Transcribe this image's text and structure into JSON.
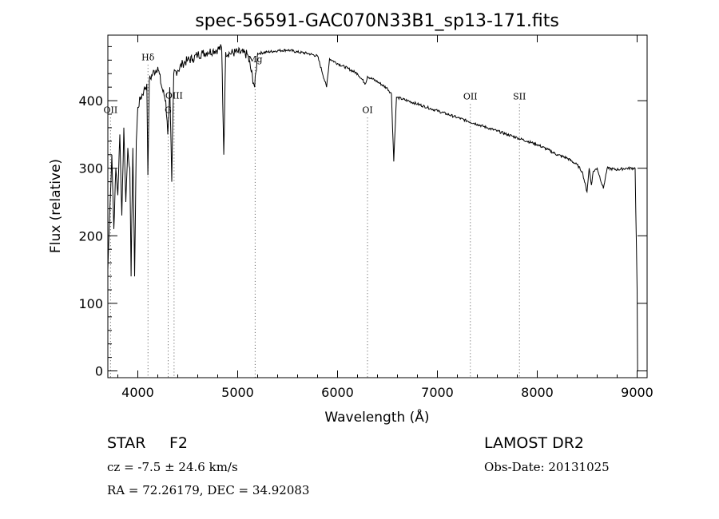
{
  "chart_data": {
    "type": "line",
    "title": "spec-56591-GAC070N33B1_sp13-171.fits",
    "xlabel": "Wavelength (Å)",
    "ylabel": "Flux (relative)",
    "xlim": [
      3700,
      9100
    ],
    "ylim": [
      -10,
      497
    ],
    "x_ticks": [
      4000,
      5000,
      6000,
      7000,
      8000,
      9000
    ],
    "y_ticks": [
      0,
      100,
      200,
      300,
      400
    ],
    "series": [
      {
        "name": "spectrum",
        "x": [
          3700,
          3720,
          3740,
          3760,
          3780,
          3800,
          3820,
          3840,
          3860,
          3880,
          3900,
          3920,
          3933,
          3950,
          3968,
          3985,
          4000,
          4030,
          4060,
          4090,
          4101,
          4115,
          4150,
          4200,
          4240,
          4280,
          4300,
          4320,
          4340,
          4360,
          4400,
          4450,
          4500,
          4550,
          4600,
          4650,
          4700,
          4750,
          4800,
          4840,
          4861,
          4880,
          4920,
          5000,
          5100,
          5170,
          5200,
          5300,
          5400,
          5500,
          5600,
          5700,
          5800,
          5890,
          5920,
          6000,
          6100,
          6200,
          6280,
          6300,
          6400,
          6500,
          6540,
          6563,
          6590,
          6700,
          6800,
          6900,
          7000,
          7100,
          7200,
          7300,
          7400,
          7500,
          7600,
          7700,
          7800,
          7900,
          8000,
          8100,
          8200,
          8300,
          8400,
          8450,
          8498,
          8520,
          8542,
          8560,
          8600,
          8662,
          8700,
          8800,
          8900,
          8980,
          9000,
          9005
        ],
        "y": [
          150,
          240,
          320,
          210,
          300,
          260,
          350,
          230,
          360,
          250,
          330,
          300,
          140,
          330,
          140,
          340,
          390,
          405,
          415,
          425,
          290,
          430,
          440,
          450,
          420,
          400,
          350,
          420,
          280,
          440,
          445,
          455,
          460,
          462,
          468,
          470,
          472,
          474,
          476,
          478,
          320,
          472,
          470,
          472,
          468,
          420,
          470,
          472,
          474,
          475,
          472,
          470,
          466,
          420,
          462,
          455,
          448,
          440,
          425,
          436,
          428,
          418,
          410,
          310,
          405,
          400,
          395,
          390,
          385,
          380,
          375,
          370,
          365,
          360,
          355,
          350,
          345,
          340,
          335,
          328,
          320,
          315,
          305,
          295,
          265,
          300,
          275,
          295,
          300,
          270,
          300,
          298,
          300,
          300,
          120,
          0
        ]
      }
    ],
    "line_markers": [
      {
        "label": "OII",
        "x": 3727,
        "y": 382
      },
      {
        "label": "Hδ",
        "x": 4102,
        "y": 460
      },
      {
        "label": "G",
        "x": 4304,
        "y": 382
      },
      {
        "label": "OIII",
        "x": 4363,
        "y": 403
      },
      {
        "label": "Mg",
        "x": 5175,
        "y": 457
      },
      {
        "label": "OI",
        "x": 6300,
        "y": 382
      },
      {
        "label": "OII",
        "x": 7330,
        "y": 402
      },
      {
        "label": "SII",
        "x": 7822,
        "y": 402
      }
    ],
    "grid": false,
    "legend": "none"
  },
  "footer": {
    "object_class": "STAR",
    "subclass": "F2",
    "survey": "LAMOST DR2",
    "velocity": "cz = -7.5 ± 24.6 km/s",
    "obs_date": "Obs-Date: 20131025",
    "coordinates": "RA =  72.26179, DEC =  34.92083"
  }
}
